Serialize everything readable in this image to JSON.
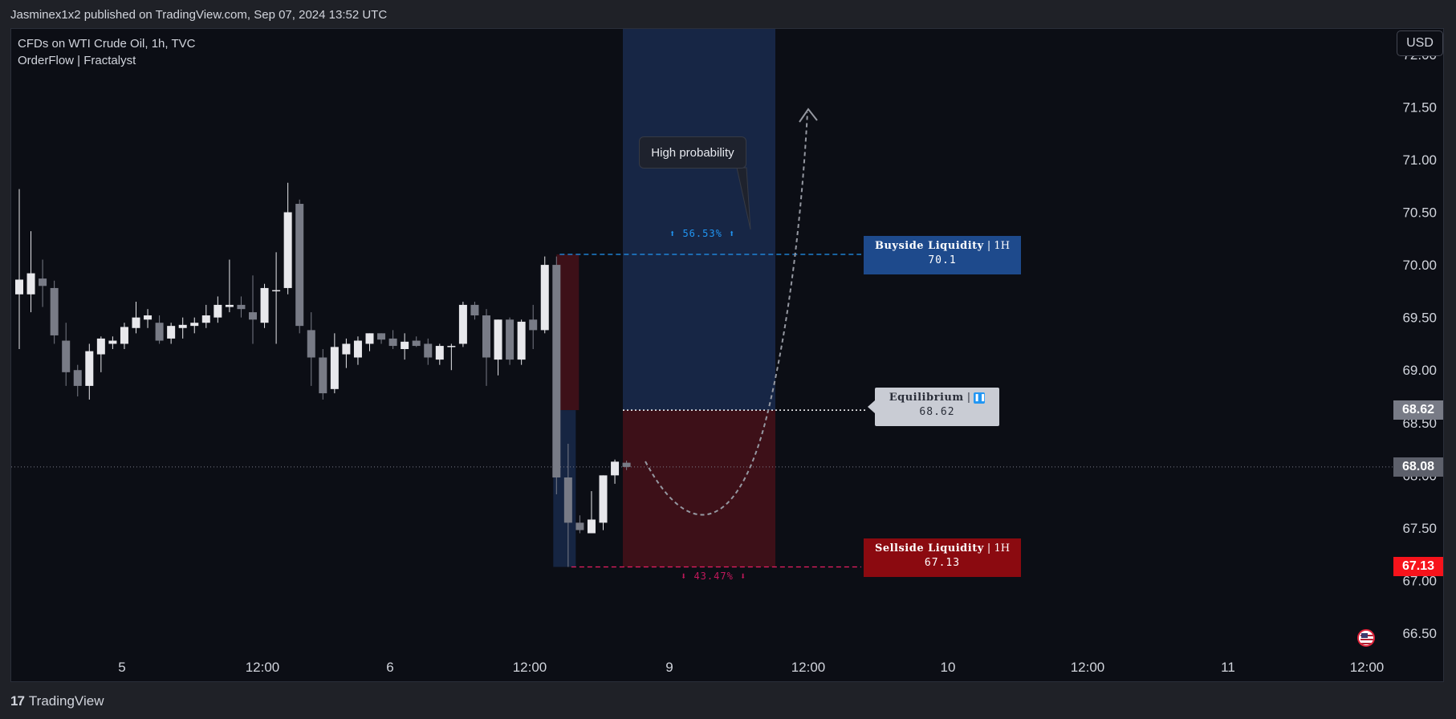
{
  "header": {
    "published_text": "Jasminex1x2 published on TradingView.com, Sep 07, 2024 13:52 UTC"
  },
  "legend": {
    "symbol_line": "CFDs on WTI Crude Oil, 1h, TVC",
    "indicator_line": "OrderFlow | Fractalyst"
  },
  "currency_button": "USD",
  "footer": {
    "logo_text": "TradingView",
    "logo_mark": "17"
  },
  "annotations": {
    "callout": "High probability",
    "up_pct": "⬆ 56.53% ⬆",
    "down_pct": "⬇ 43.47% ⬇",
    "buyside": {
      "name": "Buyside Liquidity",
      "sep": "|",
      "tf": "1H",
      "value": "70.1"
    },
    "sellside": {
      "name": "Sellside Liquidity",
      "sep": "|",
      "tf": "1H",
      "value": "67.13"
    },
    "equilibrium": {
      "name": "Equilibrium",
      "sep": "|",
      "icon": "pause-icon",
      "value": "68.62"
    }
  },
  "price_badges": {
    "equilibrium": {
      "text": "68.62",
      "color": "#787b86"
    },
    "last": {
      "text": "68.08",
      "color": "#5d606b"
    },
    "sellside": {
      "text": "67.13",
      "color": "#f7131b"
    }
  },
  "colors": {
    "background": "#0c0e15",
    "bull_candle": "#e8e8ec",
    "bear_candle": "#787b86",
    "premium_zone": "#1b2f56",
    "discount_zone": "#4a1119",
    "buyside_line": "#2196f3",
    "sellside_line": "#e91e63"
  },
  "chart_data": {
    "type": "candlestick",
    "title": "CFDs on WTI Crude Oil, 1h, TVC",
    "ylim": [
      66.15,
      72.25
    ],
    "y_ticks": [
      "72.00",
      "71.50",
      "71.00",
      "70.50",
      "70.00",
      "69.50",
      "69.00",
      "68.50",
      "68.00",
      "67.50",
      "67.00",
      "66.50"
    ],
    "x_ticks": [
      "5",
      "12:00",
      "6",
      "12:00",
      "9",
      "12:00",
      "10",
      "12:00",
      "11",
      "12:00"
    ],
    "candles": [
      {
        "o": 69.72,
        "h": 70.72,
        "l": 69.2,
        "c": 69.86
      },
      {
        "o": 69.72,
        "h": 70.32,
        "l": 69.55,
        "c": 69.92
      },
      {
        "o": 69.87,
        "h": 70.05,
        "l": 69.6,
        "c": 69.8
      },
      {
        "o": 69.78,
        "h": 69.85,
        "l": 69.25,
        "c": 69.33
      },
      {
        "o": 69.28,
        "h": 69.45,
        "l": 68.85,
        "c": 68.98
      },
      {
        "o": 69.0,
        "h": 69.05,
        "l": 68.75,
        "c": 68.85
      },
      {
        "o": 68.85,
        "h": 69.25,
        "l": 68.72,
        "c": 69.18
      },
      {
        "o": 69.15,
        "h": 69.32,
        "l": 68.98,
        "c": 69.3
      },
      {
        "o": 69.25,
        "h": 69.32,
        "l": 69.2,
        "c": 69.28
      },
      {
        "o": 69.25,
        "h": 69.45,
        "l": 69.2,
        "c": 69.41
      },
      {
        "o": 69.4,
        "h": 69.65,
        "l": 69.35,
        "c": 69.5
      },
      {
        "o": 69.48,
        "h": 69.58,
        "l": 69.4,
        "c": 69.52
      },
      {
        "o": 69.45,
        "h": 69.52,
        "l": 69.25,
        "c": 69.28
      },
      {
        "o": 69.3,
        "h": 69.45,
        "l": 69.25,
        "c": 69.42
      },
      {
        "o": 69.4,
        "h": 69.5,
        "l": 69.3,
        "c": 69.43
      },
      {
        "o": 69.42,
        "h": 69.5,
        "l": 69.35,
        "c": 69.45
      },
      {
        "o": 69.45,
        "h": 69.62,
        "l": 69.4,
        "c": 69.52
      },
      {
        "o": 69.5,
        "h": 69.7,
        "l": 69.45,
        "c": 69.62
      },
      {
        "o": 69.6,
        "h": 70.05,
        "l": 69.55,
        "c": 69.62
      },
      {
        "o": 69.62,
        "h": 69.7,
        "l": 69.5,
        "c": 69.58
      },
      {
        "o": 69.55,
        "h": 69.9,
        "l": 69.25,
        "c": 69.48
      },
      {
        "o": 69.45,
        "h": 69.82,
        "l": 69.4,
        "c": 69.78
      },
      {
        "o": 69.75,
        "h": 70.12,
        "l": 69.25,
        "c": 69.76
      },
      {
        "o": 69.78,
        "h": 70.78,
        "l": 69.72,
        "c": 70.5
      },
      {
        "o": 70.58,
        "h": 70.62,
        "l": 69.35,
        "c": 69.42
      },
      {
        "o": 69.38,
        "h": 69.55,
        "l": 68.85,
        "c": 69.12
      },
      {
        "o": 69.12,
        "h": 69.2,
        "l": 68.72,
        "c": 68.78
      },
      {
        "o": 68.82,
        "h": 69.35,
        "l": 68.78,
        "c": 69.22
      },
      {
        "o": 69.15,
        "h": 69.3,
        "l": 69.02,
        "c": 69.25
      },
      {
        "o": 69.12,
        "h": 69.32,
        "l": 69.05,
        "c": 69.28
      },
      {
        "o": 69.25,
        "h": 69.35,
        "l": 69.18,
        "c": 69.35
      },
      {
        "o": 69.35,
        "h": 69.35,
        "l": 69.25,
        "c": 69.29
      },
      {
        "o": 69.3,
        "h": 69.38,
        "l": 69.2,
        "c": 69.23
      },
      {
        "o": 69.2,
        "h": 69.35,
        "l": 69.1,
        "c": 69.27
      },
      {
        "o": 69.28,
        "h": 69.32,
        "l": 69.22,
        "c": 69.23
      },
      {
        "o": 69.25,
        "h": 69.3,
        "l": 69.05,
        "c": 69.12
      },
      {
        "o": 69.1,
        "h": 69.25,
        "l": 69.05,
        "c": 69.23
      },
      {
        "o": 69.23,
        "h": 69.25,
        "l": 69.0,
        "c": 69.23
      },
      {
        "o": 69.25,
        "h": 69.65,
        "l": 69.22,
        "c": 69.62
      },
      {
        "o": 69.62,
        "h": 69.65,
        "l": 69.48,
        "c": 69.52
      },
      {
        "o": 69.52,
        "h": 69.58,
        "l": 68.85,
        "c": 69.12
      },
      {
        "o": 69.1,
        "h": 69.48,
        "l": 68.95,
        "c": 69.48
      },
      {
        "o": 69.48,
        "h": 69.5,
        "l": 69.05,
        "c": 69.1
      },
      {
        "o": 69.1,
        "h": 69.48,
        "l": 69.05,
        "c": 69.46
      },
      {
        "o": 69.48,
        "h": 69.62,
        "l": 69.2,
        "c": 69.38
      },
      {
        "o": 69.38,
        "h": 70.08,
        "l": 69.35,
        "c": 70.0
      },
      {
        "o": 70.0,
        "h": 70.08,
        "l": 67.82,
        "c": 67.98
      },
      {
        "o": 67.98,
        "h": 68.3,
        "l": 67.13,
        "c": 67.55
      },
      {
        "o": 67.55,
        "h": 67.62,
        "l": 67.45,
        "c": 67.48
      },
      {
        "o": 67.45,
        "h": 67.85,
        "l": 67.45,
        "c": 67.58
      },
      {
        "o": 67.55,
        "h": 68.0,
        "l": 67.48,
        "c": 68.0
      },
      {
        "o": 68.0,
        "h": 68.15,
        "l": 67.92,
        "c": 68.13
      },
      {
        "o": 68.12,
        "h": 68.14,
        "l": 68.05,
        "c": 68.08
      }
    ],
    "levels": {
      "buyside_liquidity": 70.1,
      "equilibrium": 68.62,
      "sellside_liquidity": 67.13,
      "last_price": 68.08
    },
    "zones": {
      "premium_pct": 56.53,
      "discount_pct": 43.47
    }
  }
}
